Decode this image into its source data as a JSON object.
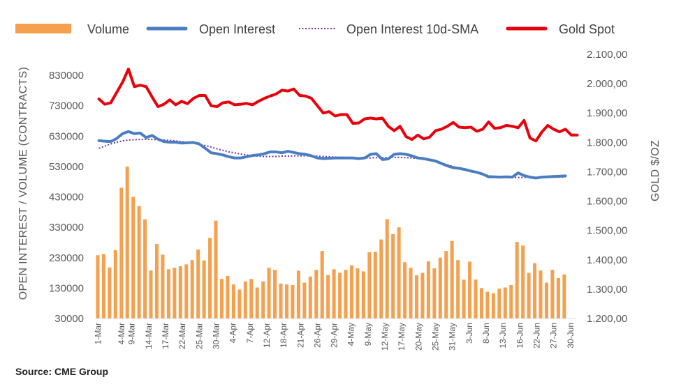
{
  "chart_data": {
    "type": "bar",
    "source": "Source: CME Group",
    "legend": {
      "placement": "top",
      "entries": [
        {
          "label": "Volume",
          "style": "bar",
          "color": "#F4A04E"
        },
        {
          "label": "Open Interest",
          "style": "line",
          "color": "#4A7EC2"
        },
        {
          "label": "Open Interest 10d-SMA",
          "style": "dotted",
          "color": "#7030A0"
        },
        {
          "label": "Gold Spot",
          "style": "line",
          "color": "#E8000B"
        }
      ]
    },
    "y_left": {
      "label": "OPEN INTEREST / VOLUME (CONTRACTS)",
      "range": [
        30000,
        830000
      ],
      "ticks": [
        "830000",
        "730000",
        "630000",
        "530000",
        "430000",
        "330000",
        "230000",
        "130000",
        "30000"
      ],
      "tick_values": [
        830000,
        730000,
        630000,
        530000,
        430000,
        330000,
        230000,
        130000,
        30000
      ]
    },
    "y_right": {
      "label": "GOLD $/OZ",
      "range": [
        1200,
        2100
      ],
      "ticks": [
        "2.100,00",
        "2.000,00",
        "1.900,00",
        "1.800,00",
        "1.700,00",
        "1.600,00",
        "1.500,00",
        "1.400,00",
        "1.300,00",
        "1.200,00"
      ],
      "tick_values": [
        2100,
        2000,
        1900,
        1800,
        1700,
        1600,
        1500,
        1400,
        1300,
        1200
      ]
    },
    "x_axis": {
      "slots": 142,
      "ticks": [
        {
          "label": "1-Mar",
          "i": 0
        },
        {
          "label": "4-Mar",
          "i": 7
        },
        {
          "label": "9-Mar",
          "i": 10
        },
        {
          "label": "14-Mar",
          "i": 15
        },
        {
          "label": "17-Mar",
          "i": 20
        },
        {
          "label": "22-Mar",
          "i": 25
        },
        {
          "label": "25-Mar",
          "i": 30
        },
        {
          "label": "30-Mar",
          "i": 35
        },
        {
          "label": "4-Apr",
          "i": 40
        },
        {
          "label": "7-Apr",
          "i": 45
        },
        {
          "label": "12-Apr",
          "i": 50
        },
        {
          "label": "18-Apr",
          "i": 55
        },
        {
          "label": "21-Apr",
          "i": 60
        },
        {
          "label": "26-Apr",
          "i": 65
        },
        {
          "label": "29-Apr",
          "i": 70
        },
        {
          "label": "4-May",
          "i": 75
        },
        {
          "label": "9-May",
          "i": 80
        },
        {
          "label": "12-May",
          "i": 85
        },
        {
          "label": "17-May",
          "i": 90
        },
        {
          "label": "20-May",
          "i": 95
        },
        {
          "label": "25-May",
          "i": 100
        },
        {
          "label": "31-May",
          "i": 105
        },
        {
          "label": "3-Jun",
          "i": 110
        },
        {
          "label": "8-Jun",
          "i": 115
        },
        {
          "label": "13-Jun",
          "i": 120
        },
        {
          "label": "16-Jun",
          "i": 125
        },
        {
          "label": "22-Jun",
          "i": 130
        },
        {
          "label": "27-Jun",
          "i": 135
        },
        {
          "label": "30-Jun",
          "i": 140
        }
      ]
    },
    "volume": [
      238000,
      242000,
      198000,
      255000,
      460000,
      530000,
      430000,
      400000,
      356000,
      188000,
      275000,
      240000,
      192000,
      197000,
      202000,
      208000,
      222000,
      257000,
      221000,
      295000,
      352000,
      160000,
      170000,
      142000,
      125000,
      152000,
      160000,
      132000,
      152000,
      197000,
      190000,
      145000,
      142000,
      140000,
      187000,
      148000,
      168000,
      190000,
      252000,
      173000,
      192000,
      180000,
      190000,
      205000,
      195000,
      185000,
      248000,
      250000,
      290000,
      357000,
      308000,
      330000,
      215000,
      197000,
      172000,
      180000,
      218000,
      195000,
      230000,
      252000,
      285000,
      222000,
      158000,
      217000,
      158000,
      130000,
      118000,
      113000,
      128000,
      132000,
      140000,
      282000,
      270000,
      180000,
      212000,
      188000,
      148000,
      190000,
      163000,
      175000
    ],
    "open_interest": {
      "start_index": 0,
      "step": 1.75,
      "values": [
        615000,
        613000,
        612000,
        622000,
        638000,
        645000,
        638000,
        640000,
        625000,
        632000,
        620000,
        612000,
        610000,
        610000,
        607000,
        608000,
        609000,
        604000,
        590000,
        575000,
        572000,
        568000,
        562000,
        558000,
        558000,
        562000,
        566000,
        568000,
        572000,
        578000,
        578000,
        575000,
        580000,
        576000,
        572000,
        570000,
        565000,
        558000,
        556000,
        557000,
        558000,
        558000,
        558000,
        558000,
        556000,
        558000,
        570000,
        572000,
        553000,
        555000,
        570000,
        572000,
        570000,
        565000,
        558000,
        556000,
        552000,
        548000,
        540000,
        532000,
        526000,
        524000,
        520000,
        515000,
        511000,
        505000,
        496000,
        496000,
        495000,
        496000,
        495000,
        509000,
        500000,
        495000,
        492000,
        495000,
        496000,
        497000,
        498000,
        499000
      ]
    },
    "open_interest_sma": {
      "start_index": 0,
      "step": 1.75,
      "values": [
        590000,
        597000,
        604000,
        610000,
        614000,
        617000,
        618000,
        619000,
        619000,
        619000,
        618000,
        617000,
        616000,
        614000,
        612000,
        610000,
        607000,
        603000,
        599000,
        594000,
        588000,
        583000,
        578000,
        575000,
        571000,
        568000,
        566000,
        564000,
        563000,
        563000,
        563000,
        564000,
        564000,
        565000,
        565000,
        565000,
        565000,
        564000,
        563000,
        562000,
        561000,
        560000,
        559000,
        559000,
        558000,
        558000,
        558000,
        559000,
        559000,
        559000,
        560000,
        560000,
        559000,
        558000,
        556000,
        553000,
        550000,
        546000,
        541000,
        536000,
        530000,
        525000,
        519000,
        514000,
        509000,
        504000,
        500000,
        497000,
        495000,
        494000,
        494000,
        494000,
        494000,
        495000,
        495000,
        495000,
        495000,
        495000,
        495000,
        495000
      ]
    },
    "gold_spot": {
      "start_index": 0,
      "step": 1.75,
      "values": [
        1948,
        1930,
        1935,
        1970,
        2005,
        2050,
        1990,
        1995,
        1990,
        1955,
        1922,
        1930,
        1945,
        1928,
        1940,
        1932,
        1950,
        1960,
        1960,
        1925,
        1922,
        1935,
        1938,
        1928,
        1930,
        1933,
        1928,
        1940,
        1950,
        1958,
        1965,
        1978,
        1975,
        1982,
        1960,
        1958,
        1950,
        1925,
        1900,
        1905,
        1890,
        1895,
        1895,
        1865,
        1866,
        1880,
        1883,
        1880,
        1883,
        1855,
        1840,
        1855,
        1820,
        1810,
        1825,
        1812,
        1818,
        1840,
        1845,
        1855,
        1868,
        1852,
        1850,
        1852,
        1838,
        1845,
        1870,
        1848,
        1850,
        1858,
        1855,
        1850,
        1875,
        1815,
        1805,
        1835,
        1858,
        1845,
        1836,
        1845,
        1825,
        1825
      ]
    }
  }
}
